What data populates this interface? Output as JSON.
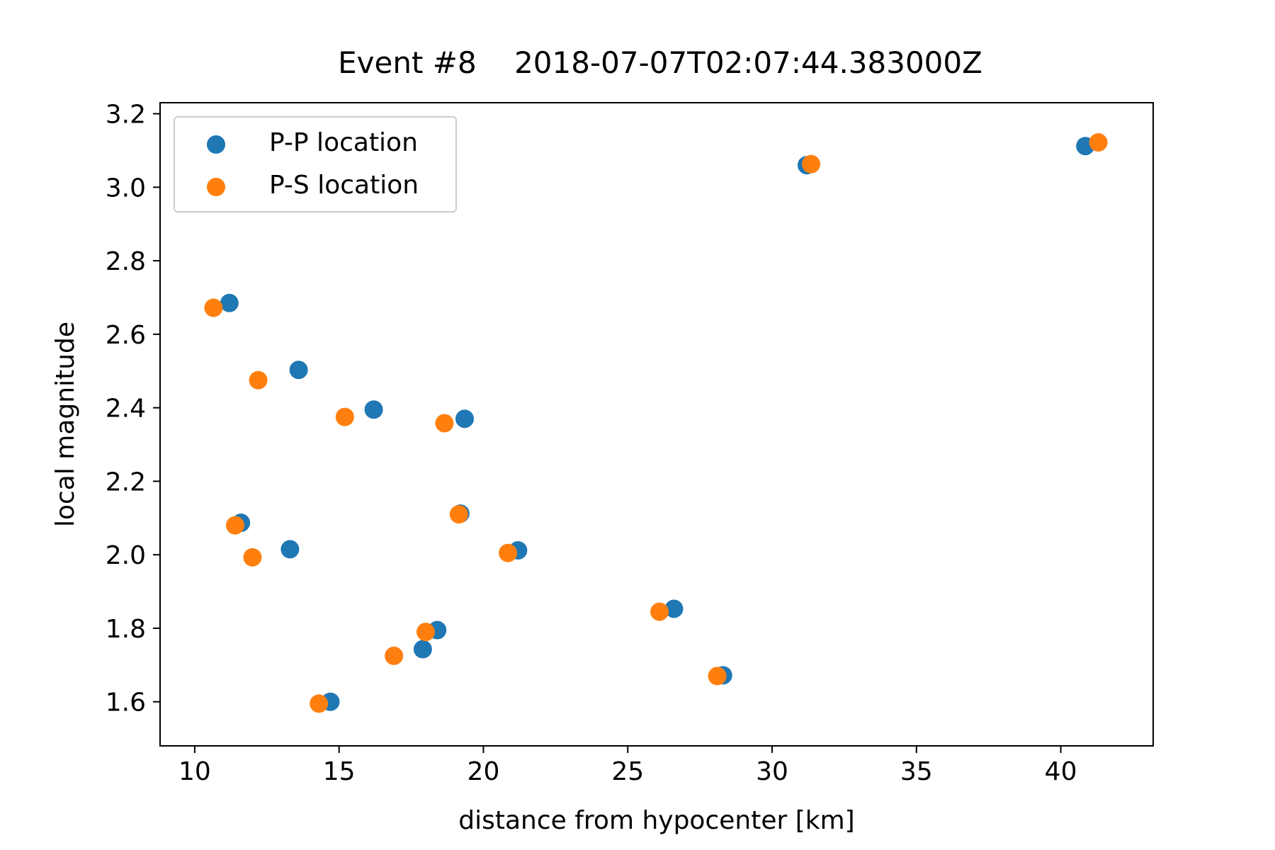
{
  "chart_data": {
    "type": "scatter",
    "title": "Event #8    2018-07-07T02:07:44.383000Z",
    "xlabel": "distance from hypocenter [km]",
    "ylabel": "local magnitude",
    "xlim": [
      8.8,
      43.2
    ],
    "ylim": [
      1.48,
      3.23
    ],
    "xticks": [
      10,
      15,
      20,
      25,
      30,
      35,
      40
    ],
    "yticks": [
      1.6,
      1.8,
      2.0,
      2.2,
      2.4,
      2.6,
      2.8,
      3.0,
      3.2
    ],
    "xtick_labels": [
      "10",
      "15",
      "20",
      "25",
      "30",
      "35",
      "40"
    ],
    "ytick_labels": [
      "1.6",
      "1.8",
      "2.0",
      "2.2",
      "2.4",
      "2.6",
      "2.8",
      "3.0",
      "3.2"
    ],
    "grid": false,
    "legend_position": "top-left",
    "series": [
      {
        "name": "P-P location",
        "color": "#1f77b4",
        "points": [
          [
            11.2,
            2.685
          ],
          [
            13.6,
            2.503
          ],
          [
            16.2,
            2.395
          ],
          [
            19.35,
            2.37
          ],
          [
            11.6,
            2.087
          ],
          [
            13.3,
            2.015
          ],
          [
            19.2,
            2.112
          ],
          [
            21.2,
            2.012
          ],
          [
            26.6,
            1.853
          ],
          [
            18.4,
            1.795
          ],
          [
            17.9,
            1.743
          ],
          [
            28.3,
            1.672
          ],
          [
            14.7,
            1.6
          ],
          [
            31.2,
            3.06
          ],
          [
            40.85,
            3.112
          ]
        ]
      },
      {
        "name": "P-S location",
        "color": "#ff7f0e",
        "points": [
          [
            10.65,
            2.672
          ],
          [
            12.2,
            2.475
          ],
          [
            15.2,
            2.375
          ],
          [
            18.65,
            2.358
          ],
          [
            11.4,
            2.08
          ],
          [
            12.0,
            1.993
          ],
          [
            19.15,
            2.11
          ],
          [
            20.85,
            2.005
          ],
          [
            26.1,
            1.845
          ],
          [
            18.0,
            1.79
          ],
          [
            16.9,
            1.725
          ],
          [
            28.1,
            1.67
          ],
          [
            14.3,
            1.595
          ],
          [
            31.35,
            3.063
          ],
          [
            41.3,
            3.122
          ]
        ]
      }
    ]
  }
}
